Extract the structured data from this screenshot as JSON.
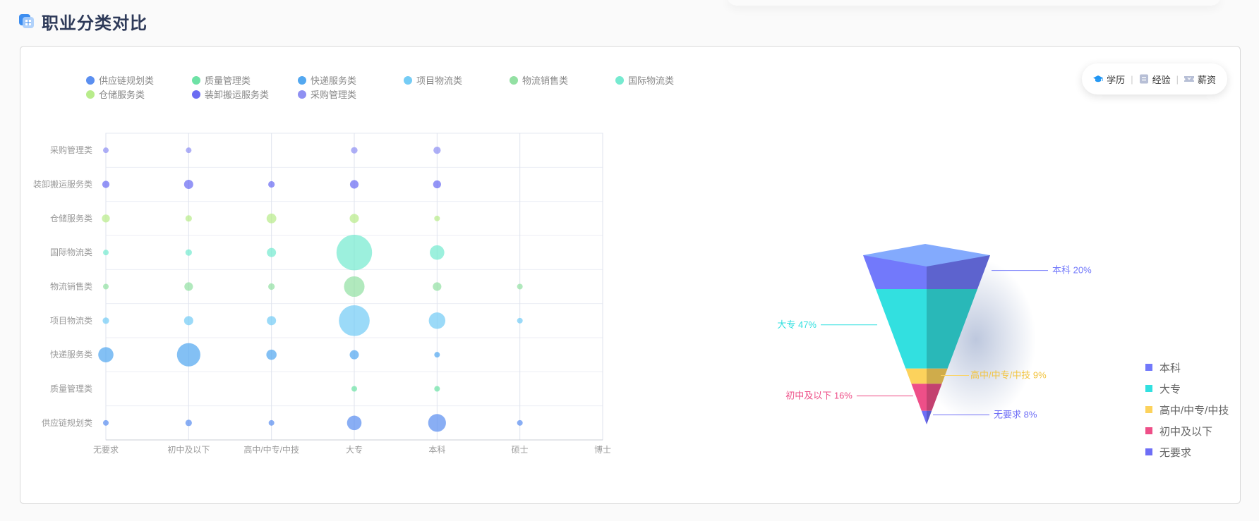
{
  "page": {
    "title": "职业分类对比"
  },
  "tabs": [
    {
      "label": "学历",
      "icon": "graduation-cap-icon"
    },
    {
      "label": "经验",
      "icon": "document-icon"
    },
    {
      "label": "薪资",
      "icon": "ticket-icon"
    }
  ],
  "chart_data": [
    {
      "type": "scatter",
      "title": "",
      "x_categories": [
        "无要求",
        "初中及以下",
        "高中/中专/中技",
        "大专",
        "本科",
        "硕士",
        "博士"
      ],
      "y_categories": [
        "供应链规划类",
        "质量管理类",
        "快递服务类",
        "项目物流类",
        "物流销售类",
        "国际物流类",
        "仓储服务类",
        "装卸搬运服务类",
        "采购管理类"
      ],
      "series": [
        {
          "name": "供应链规划类",
          "color": "#5b8ff0",
          "points": [
            [
              0,
              0,
              3
            ],
            [
              1,
              0,
              4
            ],
            [
              2,
              0,
              3
            ],
            [
              3,
              0,
              20
            ],
            [
              4,
              0,
              30
            ],
            [
              5,
              0,
              3
            ]
          ]
        },
        {
          "name": "质量管理类",
          "color": "#6ee2a6",
          "points": [
            [
              3,
              1,
              3
            ],
            [
              4,
              1,
              3
            ]
          ]
        },
        {
          "name": "快递服务类",
          "color": "#53a8f0",
          "points": [
            [
              0,
              2,
              22
            ],
            [
              1,
              2,
              52
            ],
            [
              2,
              2,
              10
            ],
            [
              3,
              2,
              8
            ],
            [
              4,
              2,
              3
            ]
          ]
        },
        {
          "name": "项目物流类",
          "color": "#75ccf5",
          "points": [
            [
              0,
              3,
              4
            ],
            [
              1,
              3,
              8
            ],
            [
              2,
              3,
              8
            ],
            [
              3,
              3,
              90
            ],
            [
              4,
              3,
              26
            ],
            [
              5,
              3,
              3
            ]
          ]
        },
        {
          "name": "物流销售类",
          "color": "#93e0a3",
          "points": [
            [
              0,
              4,
              3
            ],
            [
              1,
              4,
              7
            ],
            [
              2,
              4,
              4
            ],
            [
              3,
              4,
              40
            ],
            [
              4,
              4,
              7
            ],
            [
              5,
              4,
              3
            ]
          ]
        },
        {
          "name": "国际物流类",
          "color": "#76ead0",
          "points": [
            [
              0,
              5,
              3
            ],
            [
              1,
              5,
              4
            ],
            [
              2,
              5,
              8
            ],
            [
              3,
              5,
              120
            ],
            [
              4,
              5,
              20
            ]
          ]
        },
        {
          "name": "仓储服务类",
          "color": "#b8ec8b",
          "points": [
            [
              0,
              6,
              6
            ],
            [
              1,
              6,
              4
            ],
            [
              2,
              6,
              9
            ],
            [
              3,
              6,
              8
            ],
            [
              4,
              6,
              2
            ]
          ]
        },
        {
          "name": "装卸搬运服务类",
          "color": "#6b6cf2",
          "points": [
            [
              0,
              7,
              5
            ],
            [
              1,
              7,
              8
            ],
            [
              2,
              7,
              4
            ],
            [
              3,
              7,
              7
            ],
            [
              4,
              7,
              6
            ]
          ]
        },
        {
          "name": "采购管理类",
          "color": "#8f90f2",
          "points": [
            [
              0,
              8,
              3
            ],
            [
              1,
              8,
              3
            ],
            [
              3,
              8,
              4
            ],
            [
              4,
              8,
              5
            ]
          ]
        }
      ],
      "legend": "top-left",
      "grid": true
    },
    {
      "type": "funnel",
      "title": "",
      "slices": [
        {
          "name": "本科",
          "label": "本科 20%",
          "value": 20,
          "color": "#7279fb"
        },
        {
          "name": "大专",
          "label": "大专 47%",
          "value": 47,
          "color": "#32e0e0"
        },
        {
          "name": "高中/中专/中技",
          "label": "高中/中专/中技 9%",
          "value": 9,
          "color": "#fcd25c"
        },
        {
          "name": "初中及以下",
          "label": "初中及以下 16%",
          "value": 16,
          "color": "#ee4f88"
        },
        {
          "name": "无要求",
          "label": "无要求 8%",
          "value": 8,
          "color": "#6e6ef6"
        }
      ],
      "legend": "bottom-right"
    }
  ]
}
